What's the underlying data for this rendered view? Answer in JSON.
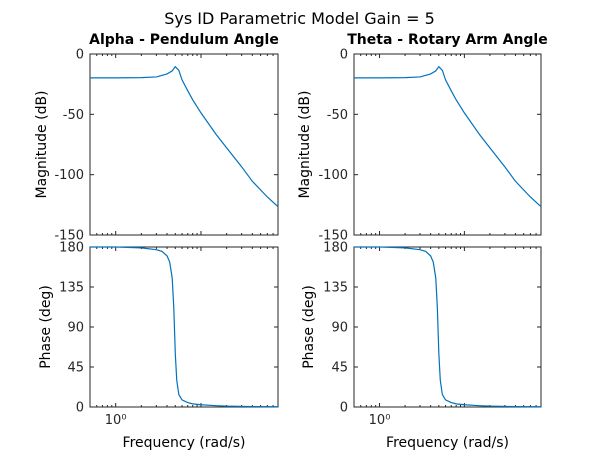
{
  "figure": {
    "title": "Sys ID Parametric Model Gain = 5"
  },
  "colors": {
    "line": "#0072bd",
    "axes": "#262626",
    "background": "#ffffff"
  },
  "chart_data": [
    {
      "type": "line",
      "id": "alpha-magnitude",
      "title": "Alpha - Pendulum Angle",
      "xlabel": "",
      "ylabel": "Magnitude (dB)",
      "xscale": "log",
      "xlim": [
        0.5,
        80
      ],
      "ylim": [
        -150,
        0
      ],
      "yticks": [
        0,
        -50,
        -100,
        -150
      ],
      "ytick_labels": [
        "0",
        "-50",
        "-100",
        "-150"
      ],
      "grid": false,
      "series": [
        {
          "x": [
            0.5,
            1,
            2,
            3,
            4,
            4.6,
            5,
            5.5,
            6,
            7,
            8,
            10,
            15,
            20,
            30,
            40,
            60,
            80
          ],
          "y": [
            -19.8,
            -19.8,
            -19.6,
            -19.0,
            -16.5,
            -14.0,
            -10.5,
            -13.5,
            -21.5,
            -30.5,
            -38.0,
            -48.8,
            -66.5,
            -77.8,
            -93.5,
            -105.5,
            -118.5,
            -126.5
          ]
        }
      ]
    },
    {
      "type": "line",
      "id": "theta-magnitude",
      "title": "Theta - Rotary Arm Angle",
      "xlabel": "",
      "ylabel": "Magnitude (dB)",
      "xscale": "log",
      "xlim": [
        0.5,
        80
      ],
      "ylim": [
        -150,
        0
      ],
      "yticks": [
        0,
        -50,
        -100,
        -150
      ],
      "ytick_labels": [
        "0",
        "-50",
        "-100",
        "-150"
      ],
      "grid": false,
      "series": [
        {
          "x": [
            0.5,
            1,
            2,
            3,
            4,
            4.6,
            5,
            5.5,
            6,
            7,
            8,
            10,
            15,
            20,
            30,
            40,
            60,
            80
          ],
          "y": [
            -19.8,
            -19.8,
            -19.6,
            -19.0,
            -16.5,
            -14.0,
            -10.5,
            -13.5,
            -21.5,
            -30.5,
            -38.0,
            -48.8,
            -66.5,
            -77.8,
            -93.5,
            -105.5,
            -118.5,
            -126.5
          ]
        }
      ]
    },
    {
      "type": "line",
      "id": "alpha-phase",
      "title": "",
      "xlabel": "Frequency  (rad/s)",
      "ylabel": "Phase (deg)",
      "xscale": "log",
      "xlim": [
        0.5,
        80
      ],
      "xticks": [
        1
      ],
      "xtick_labels": [
        "10⁰"
      ],
      "ylim": [
        0,
        180
      ],
      "yticks": [
        180,
        135,
        90,
        45,
        0
      ],
      "ytick_labels": [
        "180",
        "135",
        "90",
        "45",
        "0"
      ],
      "grid": false,
      "series": [
        {
          "x": [
            0.5,
            1,
            2,
            3,
            3.5,
            4,
            4.3,
            4.6,
            4.8,
            5.0,
            5.2,
            5.5,
            6,
            7,
            8,
            10,
            15,
            20,
            40,
            80
          ],
          "y": [
            180,
            180,
            179,
            177,
            175,
            170,
            163,
            145,
            112,
            60,
            30,
            14,
            8,
            5,
            3.5,
            2.5,
            1.5,
            1,
            0.5,
            0.3
          ]
        }
      ]
    },
    {
      "type": "line",
      "id": "theta-phase",
      "title": "",
      "xlabel": "Frequency  (rad/s)",
      "ylabel": "Phase (deg)",
      "xscale": "log",
      "xlim": [
        0.5,
        80
      ],
      "xticks": [
        1
      ],
      "xtick_labels": [
        "10⁰"
      ],
      "ylim": [
        0,
        180
      ],
      "yticks": [
        180,
        135,
        90,
        45,
        0
      ],
      "ytick_labels": [
        "180",
        "135",
        "90",
        "45",
        "0"
      ],
      "grid": false,
      "series": [
        {
          "x": [
            0.5,
            1,
            2,
            3,
            3.5,
            4,
            4.3,
            4.6,
            4.8,
            5.0,
            5.2,
            5.5,
            6,
            7,
            8,
            10,
            15,
            20,
            40,
            80
          ],
          "y": [
            180,
            180,
            179,
            177,
            175,
            170,
            163,
            145,
            112,
            60,
            30,
            14,
            8,
            5,
            3.5,
            2.5,
            1.5,
            1,
            0.5,
            0.3
          ]
        }
      ]
    }
  ]
}
